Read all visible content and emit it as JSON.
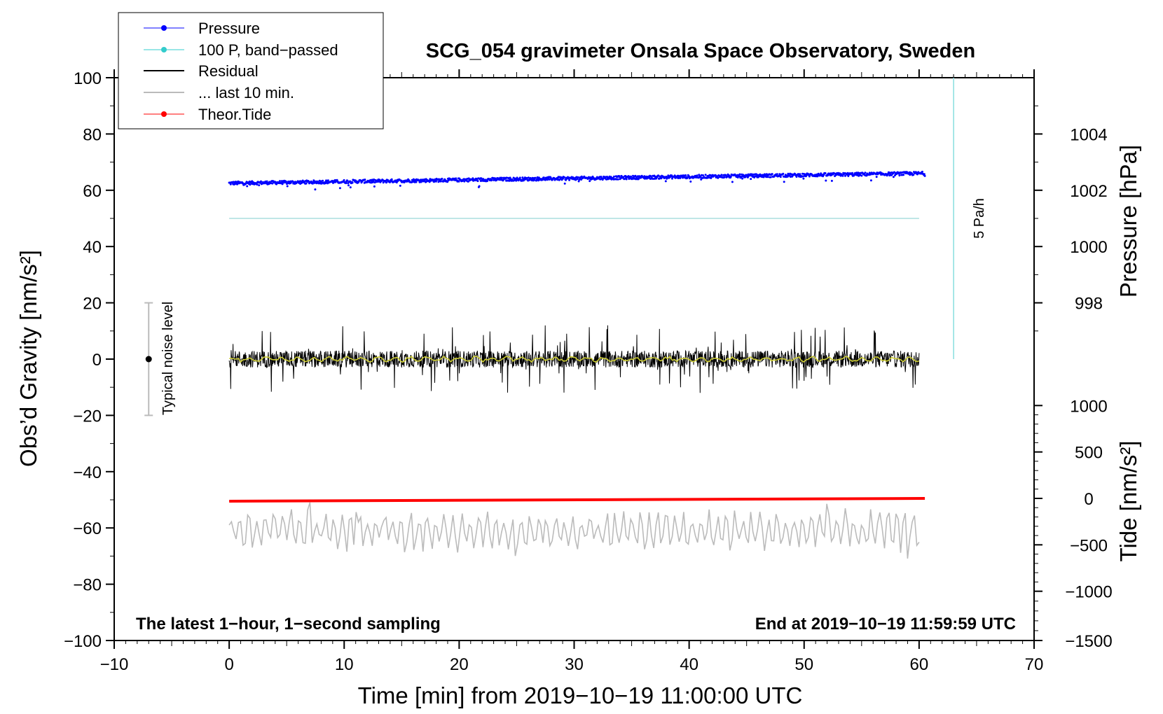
{
  "chart_data": {
    "type": "line",
    "title": "SCG_054 gravimeter Onsala Space Observatory, Sweden",
    "xlabel": "Time [min] from 2019−10−19 11:00:00 UTC",
    "ylabel_left": "Obs’d Gravity [nm/s²]",
    "ylabel_right_top": "Pressure [hPa]",
    "ylabel_right_bottom": "Tide [nm/s²]",
    "xlim": [
      -10,
      70
    ],
    "ylim": [
      -100,
      100
    ],
    "xticks": [
      -10,
      0,
      10,
      20,
      30,
      40,
      50,
      60,
      70
    ],
    "xtick_labels": [
      "−10",
      "0",
      "10",
      "20",
      "30",
      "40",
      "50",
      "60",
      "70"
    ],
    "yticks": [
      100,
      80,
      60,
      40,
      20,
      0,
      -20,
      -40,
      -60,
      -80,
      -100
    ],
    "ytick_labels": [
      "100",
      "80",
      "60",
      "40",
      "20",
      "0",
      "−20",
      "−40",
      "−60",
      "−80",
      "−100"
    ],
    "pressure_axis": {
      "ticks": [
        1004,
        1002,
        1000,
        998
      ],
      "tick_labels": [
        "1004",
        "1002",
        "1000",
        "998"
      ],
      "gravity_equivalent": [
        80,
        60,
        40,
        20
      ]
    },
    "tide_axis": {
      "ticks": [
        1000,
        500,
        0,
        -500,
        -1000,
        -1500
      ],
      "tick_labels": [
        "1000",
        "500",
        "0",
        "−500",
        "−1000",
        "−1500"
      ],
      "gravity_equivalent": [
        -16.5,
        -33,
        -49.5,
        -66,
        -82.5,
        -100
      ]
    },
    "legend": {
      "placement": "top-left",
      "entries": [
        {
          "label": "Pressure",
          "color": "#0000ff",
          "marker": true
        },
        {
          "label": "100 P, band−passed",
          "color": "#33cccc",
          "marker": true
        },
        {
          "label": "Residual",
          "color": "#000000",
          "marker": false
        },
        {
          "label": "... last 10 min.",
          "color": "#bbbbbb",
          "marker": false
        },
        {
          "label": "Theor.Tide",
          "color": "#ff0000",
          "marker": true
        }
      ]
    },
    "series": [
      {
        "name": "Pressure",
        "color": "#0000ff",
        "style": "dots",
        "x_range": [
          0,
          60.5
        ],
        "y_start": 62.5,
        "y_end": 66,
        "noise": 0.6
      },
      {
        "name": "100 P, band−passed",
        "color": "#aadddd",
        "style": "line",
        "x_range": [
          0,
          60
        ],
        "y_start": 50,
        "y_end": 50
      },
      {
        "name": "Residual",
        "color": "#000000",
        "style": "line",
        "x_range": [
          0,
          60
        ],
        "center": 0,
        "amplitude": 6,
        "max_excursion": 12
      },
      {
        "name": "Residual smoothed",
        "color": "#cccc33",
        "style": "line",
        "x_range": [
          0,
          60
        ],
        "center": 0,
        "amplitude": 1
      },
      {
        "name": "... last 10 min.",
        "color": "#bbbbbb",
        "style": "line",
        "x_range": [
          0,
          60
        ],
        "center": -61,
        "amplitude": 5,
        "max_excursion": 11
      },
      {
        "name": "Theor.Tide",
        "color": "#ff0000",
        "style": "thick-line",
        "x_range": [
          0,
          60.5
        ],
        "y_start": -50.5,
        "y_end": -49.5
      }
    ],
    "noise_bar": {
      "x": -7,
      "y": 0,
      "low": -20,
      "high": 20,
      "label": "Typical noise level"
    },
    "scale_bar": {
      "x": 63,
      "y_low": 0,
      "y_high": 100,
      "label": "5 Pa/h",
      "color": "#88dddd"
    },
    "annotation_left": "The latest 1−hour, 1−second sampling",
    "annotation_right": "End at 2019−10−19 11:59:59 UTC"
  }
}
